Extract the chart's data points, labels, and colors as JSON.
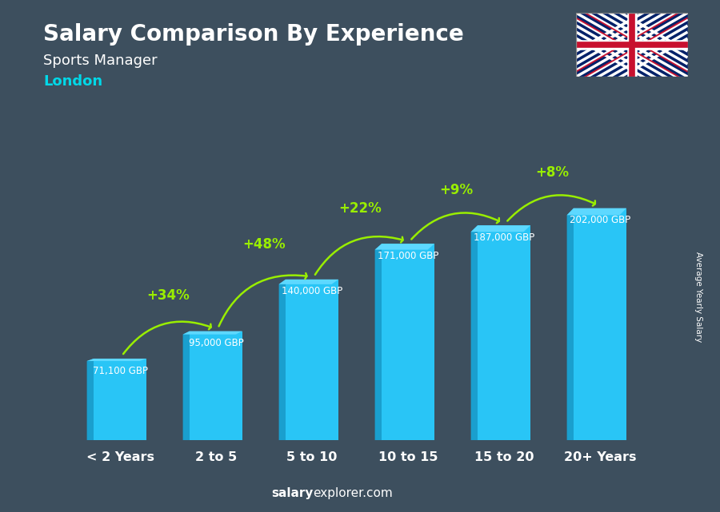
{
  "title": "Salary Comparison By Experience",
  "subtitle": "Sports Manager",
  "city": "London",
  "categories": [
    "< 2 Years",
    "2 to 5",
    "5 to 10",
    "10 to 15",
    "15 to 20",
    "20+ Years"
  ],
  "values": [
    71100,
    95000,
    140000,
    171000,
    187000,
    202000
  ],
  "value_labels": [
    "71,100 GBP",
    "95,000 GBP",
    "140,000 GBP",
    "171,000 GBP",
    "187,000 GBP",
    "202,000 GBP"
  ],
  "pct_changes": [
    "+34%",
    "+48%",
    "+22%",
    "+9%",
    "+8%"
  ],
  "bar_color_main": "#29c5f6",
  "bar_color_left": "#1a9fce",
  "bar_color_top": "#5dd8ff",
  "title_color": "#ffffff",
  "subtitle_color": "#ffffff",
  "city_color": "#00d8e8",
  "label_color": "#ffffff",
  "pct_color": "#99ee00",
  "arrow_color": "#99ee00",
  "footer_bold_color": "#ffffff",
  "footer_regular_color": "#ffffff",
  "ylabel": "Average Yearly Salary",
  "bg_color": "#3d4f5e",
  "ylim": [
    0,
    245000
  ],
  "bar_width": 0.55,
  "footer_salary_bold": "salary",
  "footer_rest": "explorer.com"
}
